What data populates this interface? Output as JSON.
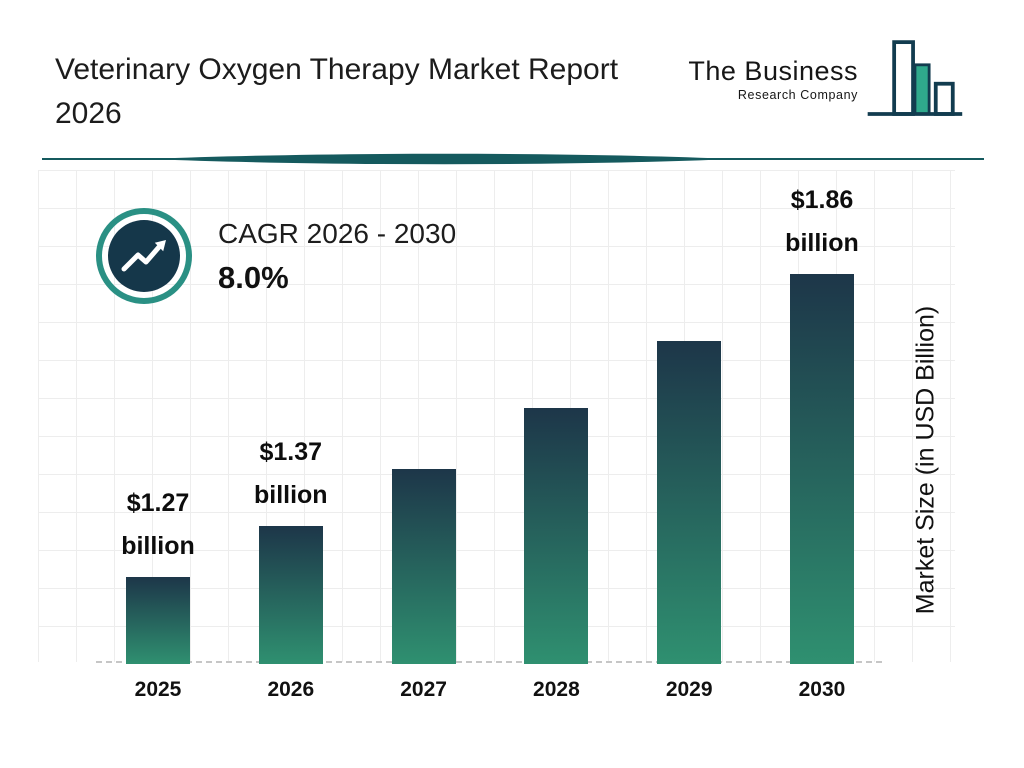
{
  "page": {
    "title_line1": "Veterinary Oxygen Therapy Market Report",
    "title_line2": "2026"
  },
  "logo": {
    "name_line1": "The Business",
    "name_line2": "Research Company"
  },
  "cagr": {
    "label": "CAGR 2026 - 2030",
    "value": "8.0%"
  },
  "chart_data": {
    "type": "bar",
    "title": "Veterinary Oxygen Therapy Market Report 2026",
    "categories": [
      "2025",
      "2026",
      "2027",
      "2028",
      "2029",
      "2030"
    ],
    "values": [
      1.27,
      1.37,
      1.48,
      1.6,
      1.73,
      1.86
    ],
    "data_labels": [
      "$1.27 billion",
      "$1.37 billion",
      null,
      null,
      null,
      "$1.86 billion"
    ],
    "xlabel": "",
    "ylabel": "Market Size (in USD Billion)",
    "ylim": [
      1.1,
      1.9
    ],
    "grid": true,
    "legend": false,
    "cagr_label": "CAGR 2026 - 2030",
    "cagr_value": "8.0%",
    "bar_gradient_top": "#1d3649",
    "bar_gradient_bottom": "#2f9070"
  },
  "colors": {
    "accent_teal": "#2a9084",
    "dark_navy": "#15374a",
    "divider_teal": "#155a5e",
    "logo_navy": "#123c4f",
    "logo_teal": "#2fa98c"
  }
}
